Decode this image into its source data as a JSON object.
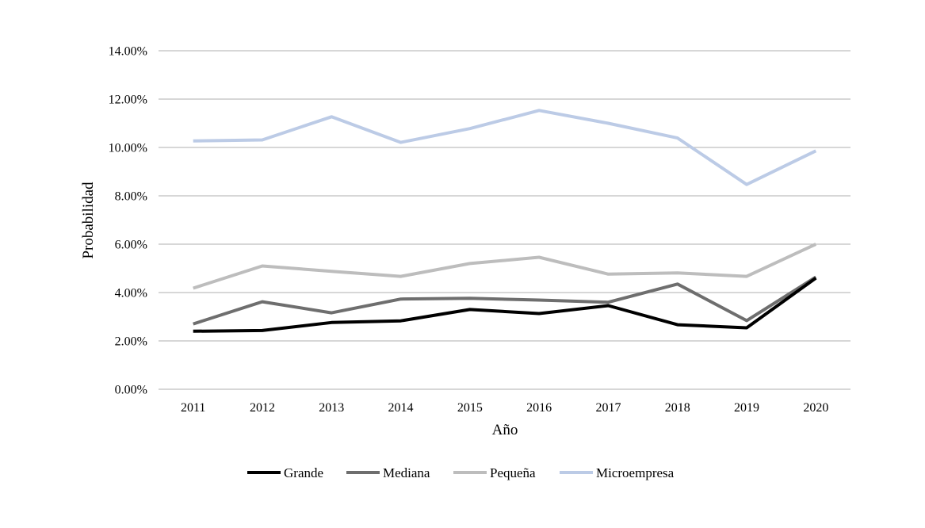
{
  "chart_data": {
    "type": "line",
    "title": "",
    "xlabel": "Año",
    "ylabel": "Probabilidad",
    "categories": [
      "2011",
      "2012",
      "2013",
      "2014",
      "2015",
      "2016",
      "2017",
      "2018",
      "2019",
      "2020"
    ],
    "y_tick_labels": [
      "0.00%",
      "2.00%",
      "4.00%",
      "6.00%",
      "8.00%",
      "10.00%",
      "12.00%",
      "14.00%"
    ],
    "ylim": [
      0,
      14
    ],
    "y_unit": "%",
    "grid": true,
    "legend_position": "bottom",
    "series": [
      {
        "name": "Grande",
        "color": "#000000",
        "values": [
          2.4,
          2.43,
          2.76,
          2.83,
          3.3,
          3.13,
          3.46,
          2.67,
          2.54,
          4.6
        ]
      },
      {
        "name": "Mediana",
        "color": "#6e6e6e",
        "values": [
          2.7,
          3.62,
          3.16,
          3.73,
          3.76,
          3.69,
          3.6,
          4.35,
          2.84,
          4.64
        ]
      },
      {
        "name": "Pequeña",
        "color": "#bdbdbd",
        "values": [
          4.18,
          5.1,
          4.88,
          4.67,
          5.2,
          5.46,
          4.76,
          4.81,
          4.67,
          6.0
        ]
      },
      {
        "name": "Microempresa",
        "color": "#bccbe6",
        "values": [
          10.27,
          10.31,
          11.27,
          10.21,
          10.78,
          11.53,
          11.0,
          10.39,
          8.47,
          9.86
        ]
      }
    ]
  }
}
